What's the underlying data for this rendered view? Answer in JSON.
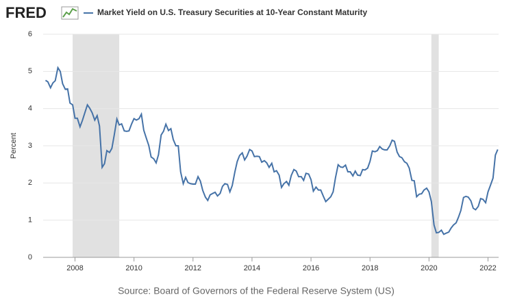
{
  "logo": "FRED",
  "chart_data": {
    "type": "line",
    "source": "Source: Board of Governors of the Federal Reserve System (US)",
    "y_label": "Percent",
    "xlim": [
      2006.92,
      2022.36
    ],
    "ylim": [
      0,
      6
    ],
    "xticks": [
      2008,
      2010,
      2012,
      2014,
      2016,
      2018,
      2020,
      2022
    ],
    "yticks": [
      0,
      1,
      2,
      3,
      4,
      5,
      6
    ],
    "grid": true,
    "recessions": [
      [
        2007.92,
        2009.5
      ],
      [
        2020.08,
        2020.33
      ]
    ],
    "recession_color": "#e1e1e1",
    "x": [
      2007,
      2007.08,
      2007.17,
      2007.25,
      2007.33,
      2007.42,
      2007.5,
      2007.58,
      2007.67,
      2007.75,
      2007.83,
      2007.92,
      2008,
      2008.08,
      2008.17,
      2008.25,
      2008.33,
      2008.42,
      2008.5,
      2008.58,
      2008.67,
      2008.75,
      2008.83,
      2008.92,
      2009,
      2009.08,
      2009.17,
      2009.25,
      2009.33,
      2009.42,
      2009.5,
      2009.58,
      2009.67,
      2009.75,
      2009.83,
      2009.92,
      2010,
      2010.08,
      2010.17,
      2010.25,
      2010.33,
      2010.42,
      2010.5,
      2010.58,
      2010.67,
      2010.75,
      2010.83,
      2010.92,
      2011,
      2011.08,
      2011.17,
      2011.25,
      2011.33,
      2011.42,
      2011.5,
      2011.58,
      2011.67,
      2011.75,
      2011.83,
      2011.92,
      2012,
      2012.08,
      2012.17,
      2012.25,
      2012.33,
      2012.42,
      2012.5,
      2012.58,
      2012.67,
      2012.75,
      2012.83,
      2012.92,
      2013,
      2013.08,
      2013.17,
      2013.25,
      2013.33,
      2013.42,
      2013.5,
      2013.58,
      2013.67,
      2013.75,
      2013.83,
      2013.92,
      2014,
      2014.08,
      2014.17,
      2014.25,
      2014.33,
      2014.42,
      2014.5,
      2014.58,
      2014.67,
      2014.75,
      2014.83,
      2014.92,
      2015,
      2015.08,
      2015.17,
      2015.25,
      2015.33,
      2015.42,
      2015.5,
      2015.58,
      2015.67,
      2015.75,
      2015.83,
      2015.92,
      2016,
      2016.08,
      2016.17,
      2016.25,
      2016.33,
      2016.42,
      2016.5,
      2016.58,
      2016.67,
      2016.75,
      2016.83,
      2016.92,
      2017,
      2017.08,
      2017.17,
      2017.25,
      2017.33,
      2017.42,
      2017.5,
      2017.58,
      2017.67,
      2017.75,
      2017.83,
      2017.92,
      2018,
      2018.08,
      2018.17,
      2018.25,
      2018.33,
      2018.42,
      2018.5,
      2018.58,
      2018.67,
      2018.75,
      2018.83,
      2018.92,
      2019,
      2019.08,
      2019.17,
      2019.25,
      2019.33,
      2019.42,
      2019.5,
      2019.58,
      2019.67,
      2019.75,
      2019.83,
      2019.92,
      2020,
      2020.08,
      2020.17,
      2020.25,
      2020.33,
      2020.42,
      2020.5,
      2020.58,
      2020.67,
      2020.75,
      2020.83,
      2020.92,
      2021,
      2021.08,
      2021.17,
      2021.25,
      2021.33,
      2021.42,
      2021.5,
      2021.58,
      2021.67,
      2021.75,
      2021.83,
      2021.92,
      2022,
      2022.08,
      2022.17,
      2022.25,
      2022.33
    ],
    "series": [
      {
        "name": "Market Yield on U.S. Treasury Securities at 10-Year Constant Maturity",
        "color": "#4572a7",
        "values": [
          4.76,
          4.72,
          4.56,
          4.69,
          4.75,
          5.1,
          5.0,
          4.67,
          4.52,
          4.53,
          4.15,
          4.1,
          3.74,
          3.74,
          3.51,
          3.68,
          3.88,
          4.1,
          4.01,
          3.89,
          3.69,
          3.81,
          3.53,
          2.42,
          2.52,
          2.87,
          2.82,
          2.93,
          3.29,
          3.72,
          3.56,
          3.59,
          3.4,
          3.39,
          3.4,
          3.59,
          3.73,
          3.69,
          3.73,
          3.85,
          3.42,
          3.2,
          3.01,
          2.7,
          2.65,
          2.54,
          2.76,
          3.29,
          3.39,
          3.58,
          3.41,
          3.46,
          3.17,
          3.0,
          3.0,
          2.3,
          1.98,
          2.15,
          2.01,
          1.98,
          1.97,
          1.97,
          2.17,
          2.05,
          1.8,
          1.62,
          1.53,
          1.68,
          1.72,
          1.75,
          1.65,
          1.72,
          1.91,
          1.98,
          1.96,
          1.76,
          1.93,
          2.3,
          2.58,
          2.74,
          2.81,
          2.62,
          2.72,
          2.9,
          2.86,
          2.71,
          2.72,
          2.71,
          2.56,
          2.6,
          2.54,
          2.42,
          2.53,
          2.3,
          2.33,
          2.21,
          1.88,
          1.98,
          2.04,
          1.94,
          2.2,
          2.36,
          2.32,
          2.17,
          2.17,
          2.07,
          2.26,
          2.24,
          2.09,
          1.78,
          1.89,
          1.81,
          1.81,
          1.64,
          1.5,
          1.56,
          1.63,
          1.76,
          2.14,
          2.49,
          2.43,
          2.42,
          2.48,
          2.3,
          2.3,
          2.19,
          2.32,
          2.21,
          2.2,
          2.36,
          2.35,
          2.4,
          2.58,
          2.86,
          2.84,
          2.87,
          2.98,
          2.91,
          2.89,
          2.89,
          3.0,
          3.15,
          3.12,
          2.83,
          2.71,
          2.68,
          2.57,
          2.53,
          2.4,
          2.07,
          2.06,
          1.63,
          1.7,
          1.71,
          1.81,
          1.86,
          1.76,
          1.5,
          0.87,
          0.66,
          0.67,
          0.73,
          0.62,
          0.65,
          0.68,
          0.79,
          0.87,
          0.93,
          1.08,
          1.26,
          1.61,
          1.64,
          1.62,
          1.52,
          1.32,
          1.28,
          1.37,
          1.58,
          1.56,
          1.47,
          1.76,
          1.93,
          2.13,
          2.75,
          2.9
        ]
      }
    ]
  }
}
